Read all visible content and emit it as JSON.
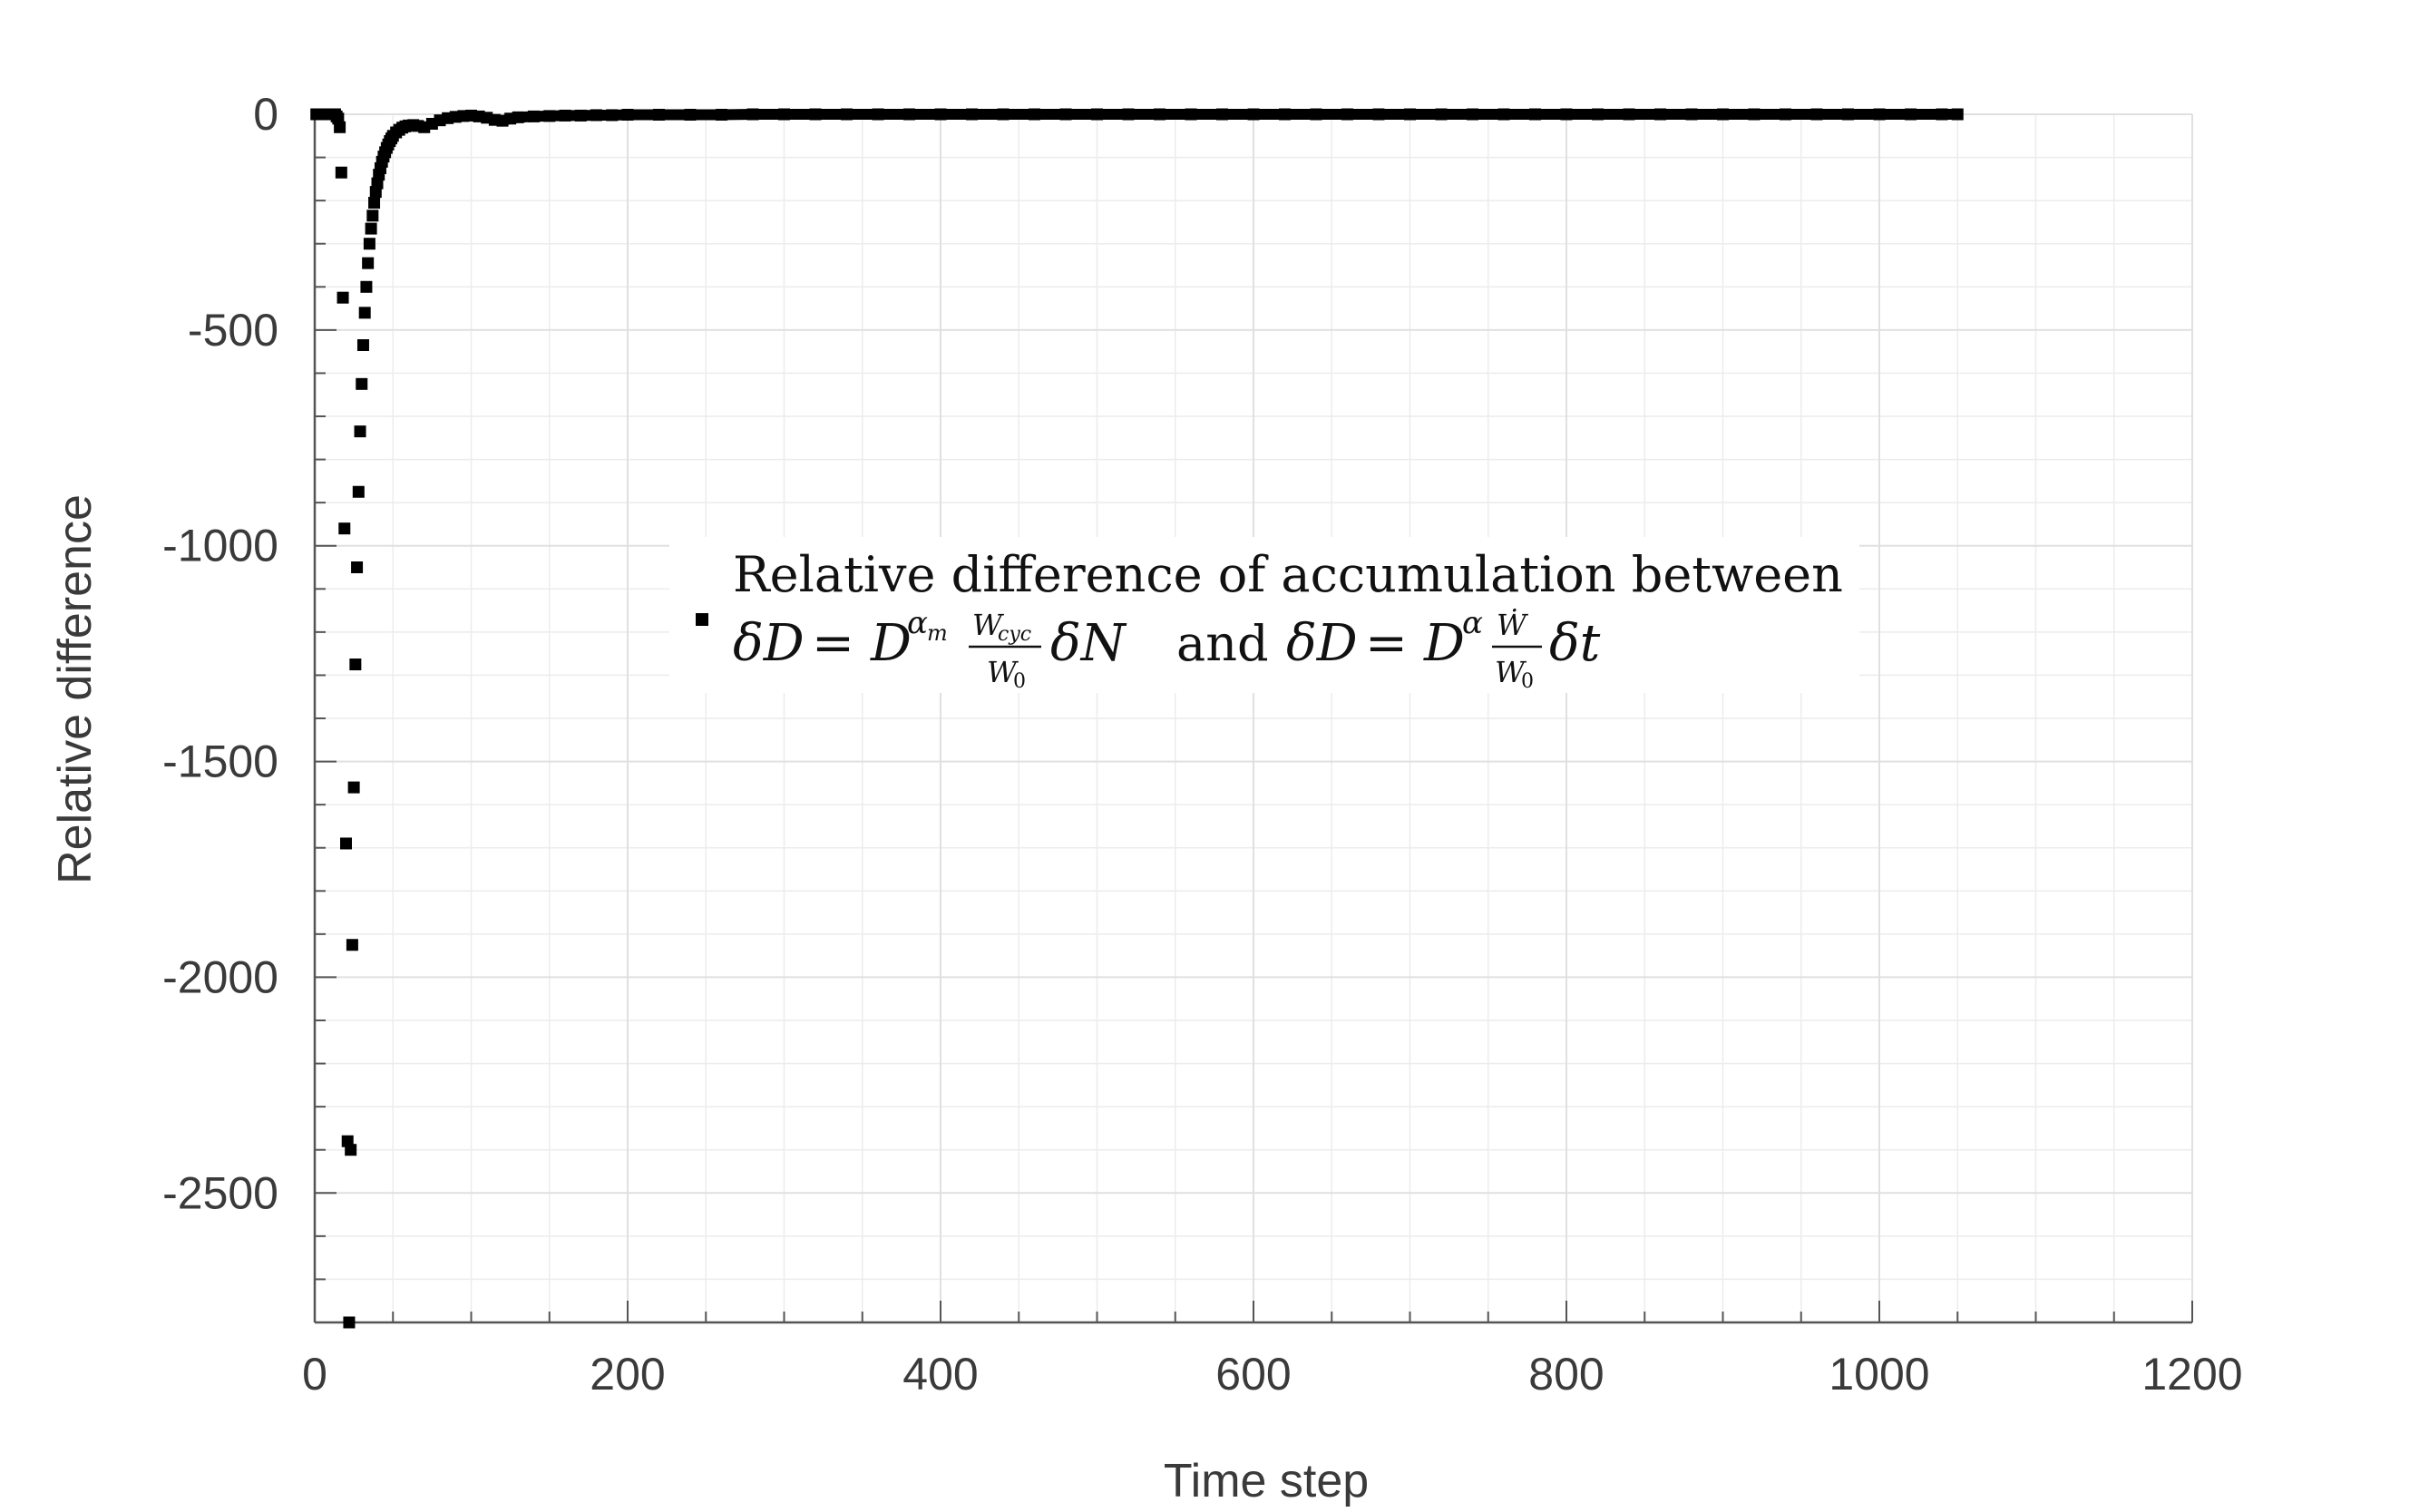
{
  "chart_data": {
    "type": "scatter",
    "title": "",
    "xlabel": "Time step",
    "ylabel": "Relative difference",
    "xlim": [
      0,
      1200
    ],
    "ylim": [
      -2800,
      0
    ],
    "xticks": [
      0,
      200,
      400,
      600,
      800,
      1000,
      1200
    ],
    "xtick_labels": [
      "0",
      "200",
      "400",
      "600",
      "800",
      "1000",
      "1200"
    ],
    "yticks": [
      0,
      -500,
      -1000,
      -1500,
      -2000,
      -2500
    ],
    "ytick_labels": [
      "0",
      "-500",
      "-1000",
      "-1500",
      "-2000",
      "-2500"
    ],
    "grid": true,
    "legend_position": "center",
    "marker": "square",
    "marker_color": "#000000",
    "grid_color": "#e0e0e0",
    "axis_color": "#555555",
    "legend": {
      "line1": "Relative difference of accumulation between",
      "line2_connector": "and"
    },
    "series": [
      {
        "name": "Relative difference of accumulation between δD = D^{αm} Wcyc/W0 δN and δD = D^α Ẇ/W0 δt",
        "x": [
          1,
          3,
          5,
          7,
          9,
          11,
          13,
          14,
          15,
          16,
          17,
          18,
          19,
          20,
          21,
          22,
          23,
          24,
          25,
          26,
          27,
          28,
          29,
          30,
          31,
          32,
          33,
          34,
          35,
          36,
          37,
          38,
          39,
          40,
          41,
          42,
          43,
          44,
          45,
          46,
          47,
          48,
          49,
          50,
          52,
          54,
          56,
          58,
          60,
          63,
          66,
          70,
          75,
          80,
          85,
          90,
          95,
          100,
          105,
          110,
          115,
          120,
          125,
          130,
          140,
          150,
          160,
          170,
          180,
          190,
          200,
          220,
          240,
          260,
          280,
          300,
          320,
          340,
          360,
          380,
          400,
          420,
          440,
          460,
          480,
          500,
          520,
          540,
          560,
          580,
          600,
          620,
          640,
          660,
          680,
          700,
          720,
          740,
          760,
          780,
          800,
          820,
          840,
          860,
          880,
          900,
          920,
          940,
          960,
          980,
          1000,
          1020,
          1040,
          1050
        ],
        "y": [
          0,
          0,
          0,
          0,
          0,
          0,
          0,
          -5,
          -10,
          -30,
          -135,
          -425,
          -960,
          -1690,
          -2380,
          -2800,
          -2400,
          -1925,
          -1560,
          -1275,
          -1050,
          -875,
          -735,
          -625,
          -535,
          -460,
          -400,
          -345,
          -300,
          -265,
          -235,
          -205,
          -180,
          -160,
          -140,
          -125,
          -110,
          -98,
          -88,
          -78,
          -70,
          -62,
          -56,
          -50,
          -42,
          -36,
          -31,
          -28,
          -26,
          -25,
          -27,
          -30,
          -22,
          -14,
          -9,
          -6,
          -4,
          -3,
          -5,
          -8,
          -13,
          -15,
          -10,
          -7,
          -5,
          -4,
          -3,
          -3,
          -2,
          -2,
          -1,
          -1,
          -1,
          -1,
          0,
          0,
          0,
          0,
          0,
          0,
          0,
          0,
          0,
          0,
          0,
          0,
          0,
          0,
          0,
          0,
          0,
          0,
          0,
          0,
          0,
          0,
          0,
          0,
          0,
          0,
          0,
          0,
          0,
          0,
          0,
          0,
          0,
          0,
          0,
          0,
          0,
          0,
          0,
          0
        ]
      }
    ]
  }
}
